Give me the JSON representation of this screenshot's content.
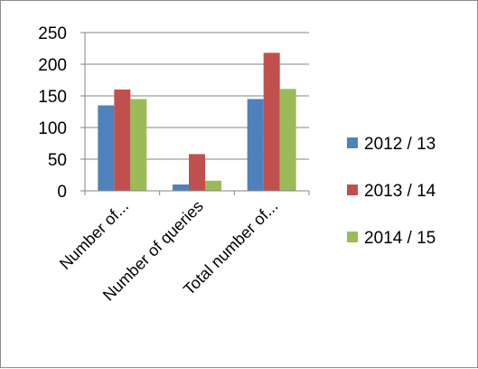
{
  "chart_data": {
    "type": "bar",
    "title": "",
    "xlabel": "",
    "ylabel": "",
    "ylim": [
      0,
      250
    ],
    "y_ticks": [
      0,
      50,
      100,
      150,
      200,
      250
    ],
    "grid": true,
    "legend_position": "right",
    "categories": [
      "Number of...",
      "Number of queries",
      "Total number of..."
    ],
    "series": [
      {
        "name": "2012 / 13",
        "color": "#4f81bd",
        "values": [
          135,
          10,
          145
        ]
      },
      {
        "name": "2013 / 14",
        "color": "#c0504d",
        "values": [
          160,
          58,
          218
        ]
      },
      {
        "name": "2014 / 15",
        "color": "#9bbb59",
        "values": [
          145,
          16,
          161
        ]
      }
    ]
  }
}
